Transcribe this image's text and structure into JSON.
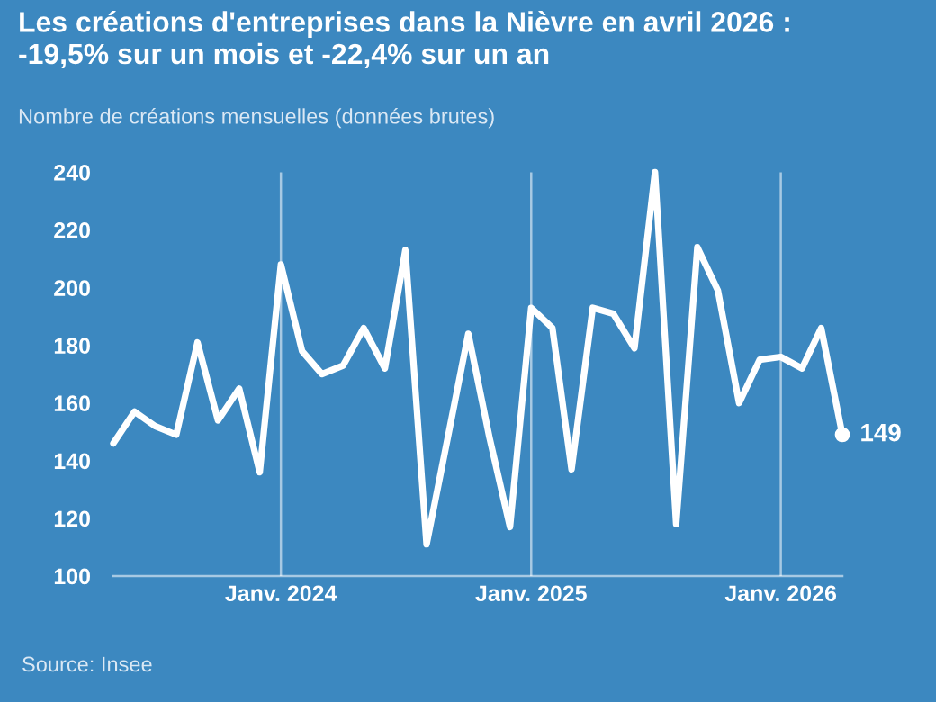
{
  "chart_data": {
    "type": "line",
    "title": "Les créations d'entreprises dans la Nièvre en avril 2026 :\n-19,5% sur un mois et -22,4% sur un an",
    "subtitle": "Nombre de créations mensuelles (données brutes)",
    "annotations": [
      "Source: Insee"
    ],
    "x": [
      "2023-05",
      "2023-06",
      "2023-07",
      "2023-08",
      "2023-09",
      "2023-10",
      "2023-11",
      "2023-12",
      "2024-01",
      "2024-02",
      "2024-03",
      "2024-04",
      "2024-05",
      "2024-06",
      "2024-07",
      "2024-08",
      "2024-09",
      "2024-10",
      "2024-11",
      "2024-12",
      "2025-01",
      "2025-02",
      "2025-03",
      "2025-04",
      "2025-05",
      "2025-06",
      "2025-07",
      "2025-08",
      "2025-09",
      "2025-10",
      "2025-11",
      "2025-12",
      "2026-01",
      "2026-02",
      "2026-03",
      "2026-04"
    ],
    "series": [
      {
        "color": "#ffffff",
        "values": [
          146,
          157,
          152,
          149,
          181,
          154,
          165,
          136,
          208,
          178,
          170,
          173,
          186,
          172,
          213,
          111,
          148,
          184,
          148,
          117,
          193,
          186,
          137,
          193,
          191,
          179,
          240,
          118,
          214,
          199,
          160,
          175,
          176,
          172,
          186,
          149
        ],
        "value_labels": [
          null,
          null,
          null,
          null,
          null,
          null,
          null,
          null,
          null,
          null,
          null,
          null,
          null,
          null,
          null,
          null,
          null,
          null,
          null,
          null,
          null,
          null,
          null,
          null,
          null,
          null,
          null,
          null,
          null,
          null,
          null,
          null,
          null,
          null,
          null,
          "149"
        ]
      }
    ],
    "xticks": [
      {
        "value": "2024-01",
        "label": "Janv. 2024"
      },
      {
        "value": "2025-01",
        "label": "Janv. 2025"
      },
      {
        "value": "2026-01",
        "label": "Janv. 2026"
      }
    ],
    "xlim": [
      "2023-05",
      "2026-04"
    ],
    "ylim": [
      100,
      240
    ],
    "yticks": [
      100,
      120,
      140,
      160,
      180,
      200,
      220,
      240
    ],
    "grid": "x",
    "legend": false,
    "line_style": "solid"
  }
}
